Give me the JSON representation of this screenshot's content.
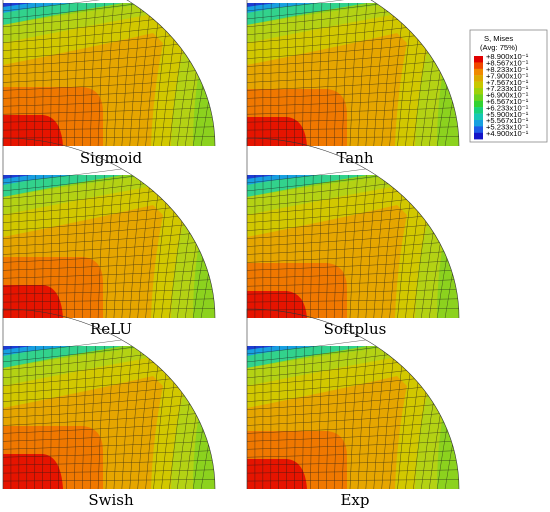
{
  "panels": [
    {
      "caption": "Sigmoid",
      "variant": 0
    },
    {
      "caption": "Tanh",
      "variant": 1
    },
    {
      "caption": "ReLU",
      "variant": 2
    },
    {
      "caption": "Softplus",
      "variant": 3
    },
    {
      "caption": "Swish",
      "variant": 4
    },
    {
      "caption": "Exp",
      "variant": 5
    }
  ],
  "legend": {
    "title_line1": "S, Mises",
    "title_line2": "(Avg: 75%)",
    "values": [
      "+8.900x10⁻¹",
      "+8.567x10⁻¹",
      "+8.233x10⁻¹",
      "+7.900x10⁻¹",
      "+7.567x10⁻¹",
      "+7.233x10⁻¹",
      "+6.900x10⁻¹",
      "+6.567x10⁻¹",
      "+6.233x10⁻¹",
      "+5.900x10⁻¹",
      "+5.567x10⁻¹",
      "+5.233x10⁻¹",
      "+4.900x10⁻¹"
    ],
    "colors": [
      "#e00000",
      "#f04800",
      "#f08a00",
      "#dcaa00",
      "#c8c800",
      "#9ed20a",
      "#6ed21e",
      "#32d232",
      "#18d27a",
      "#18c8b4",
      "#18a0e0",
      "#1e5ae6",
      "#1414c8"
    ]
  }
}
